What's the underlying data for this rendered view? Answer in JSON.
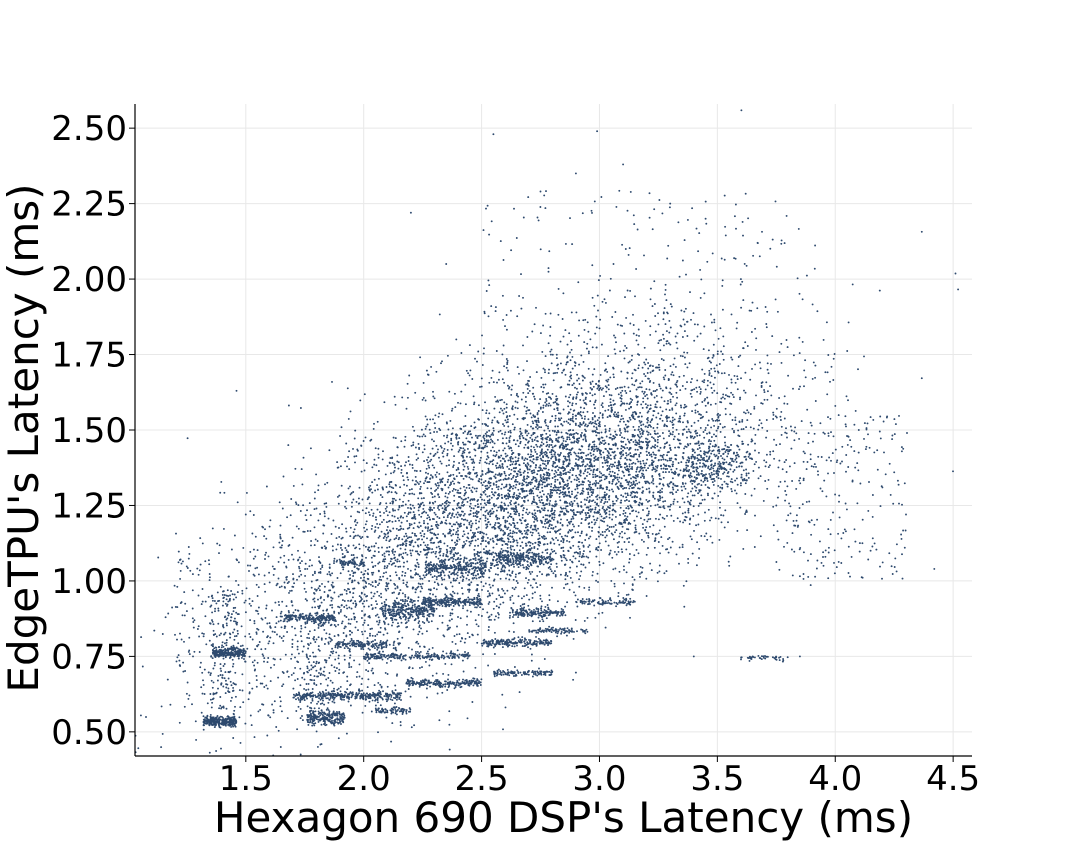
{
  "chart_data": {
    "type": "scatter",
    "title": "",
    "xlabel": "Hexagon 690 DSP's Latency (ms)",
    "ylabel": "EdgeTPU's Latency (ms)",
    "xlim": [
      1.03,
      4.58
    ],
    "ylim": [
      0.42,
      2.58
    ],
    "xticks": [
      "1.5",
      "2.0",
      "2.5",
      "3.0",
      "3.5",
      "4.0",
      "4.5"
    ],
    "yticks": [
      "0.50",
      "0.75",
      "1.00",
      "1.25",
      "1.50",
      "1.75",
      "2.00",
      "2.25",
      "2.50"
    ],
    "grid": true,
    "legend": "none",
    "marker_color": "#2e4a6e",
    "approx_point_count": 9000,
    "series": [
      {
        "note_clusters": [
          {
            "x": [
              1.3,
              1.45
            ],
            "y": [
              0.52,
              0.55
            ]
          },
          {
            "x": [
              1.38,
              1.52
            ],
            "y": [
              0.75,
              0.78
            ]
          },
          {
            "x": [
              1.7,
              1.9
            ],
            "y": [
              0.87,
              0.89
            ]
          },
          {
            "x": [
              1.75,
              2.15
            ],
            "y": [
              0.61,
              0.63
            ]
          },
          {
            "x": [
              2.1,
              2.3
            ],
            "y": [
              0.88,
              0.93
            ]
          },
          {
            "x": [
              2.2,
              2.5
            ],
            "y": [
              0.65,
              0.67
            ]
          },
          {
            "x": [
              2.3,
              2.5
            ],
            "y": [
              1.02,
              1.06
            ]
          },
          {
            "x": [
              2.6,
              2.75
            ],
            "y": [
              1.06,
              1.09
            ]
          },
          {
            "x": [
              2.5,
              2.8
            ],
            "y": [
              0.78,
              0.8
            ]
          },
          {
            "x": [
              2.8,
              3.1
            ],
            "y": [
              1.15,
              1.25
            ]
          },
          {
            "x": [
              3.0,
              3.3
            ],
            "y": [
              1.3,
              1.5
            ]
          },
          {
            "x": [
              3.4,
              3.6
            ],
            "y": [
              1.35,
              1.42
            ]
          }
        ]
      }
    ],
    "sample_points": [
      [
        1.18,
        0.59
      ],
      [
        1.22,
        0.53
      ],
      [
        1.25,
        0.9
      ],
      [
        1.3,
        0.85
      ],
      [
        1.35,
        0.55
      ],
      [
        1.4,
        0.68
      ],
      [
        1.45,
        0.78
      ],
      [
        1.5,
        1.22
      ],
      [
        1.55,
        0.95
      ],
      [
        1.62,
        1.04
      ],
      [
        1.68,
        1.45
      ],
      [
        1.72,
        0.8
      ],
      [
        1.8,
        0.55
      ],
      [
        1.85,
        0.95
      ],
      [
        1.9,
        1.48
      ],
      [
        1.95,
        0.79
      ],
      [
        2.0,
        1.4
      ],
      [
        2.05,
        1.0
      ],
      [
        2.1,
        0.57
      ],
      [
        2.15,
        1.2
      ],
      [
        2.2,
        2.22
      ],
      [
        2.25,
        1.6
      ],
      [
        2.3,
        0.75
      ],
      [
        2.35,
        2.05
      ],
      [
        2.4,
        1.3
      ],
      [
        2.45,
        0.92
      ],
      [
        2.5,
        1.44
      ],
      [
        2.55,
        2.48
      ],
      [
        2.6,
        1.1
      ],
      [
        2.65,
        1.62
      ],
      [
        2.7,
        0.7
      ],
      [
        2.75,
        2.29
      ],
      [
        2.8,
        1.25
      ],
      [
        2.85,
        1.7
      ],
      [
        2.9,
        2.35
      ],
      [
        2.95,
        1.36
      ],
      [
        2.99,
        2.49
      ],
      [
        3.05,
        1.0
      ],
      [
        3.1,
        2.38
      ],
      [
        3.15,
        1.5
      ],
      [
        3.2,
        0.95
      ],
      [
        3.25,
        1.85
      ],
      [
        3.3,
        2.25
      ],
      [
        3.35,
        1.3
      ],
      [
        3.4,
        0.75
      ],
      [
        3.45,
        2.2
      ],
      [
        3.5,
        1.55
      ],
      [
        3.55,
        1.05
      ],
      [
        3.6,
        2.0
      ],
      [
        3.65,
        0.75
      ],
      [
        3.7,
        1.6
      ],
      [
        3.75,
        1.25
      ],
      [
        3.8,
        1.68
      ],
      [
        3.85,
        0.75
      ],
      [
        3.9,
        1.38
      ],
      [
        3.95,
        1.05
      ],
      [
        4.0,
        1.58
      ],
      [
        4.05,
        1.48
      ],
      [
        4.1,
        1.5
      ],
      [
        4.15,
        1.1
      ],
      [
        4.2,
        1.31
      ],
      [
        4.25,
        1.36
      ],
      [
        4.3,
        1.22
      ],
      [
        4.42,
        1.04
      ]
    ]
  }
}
